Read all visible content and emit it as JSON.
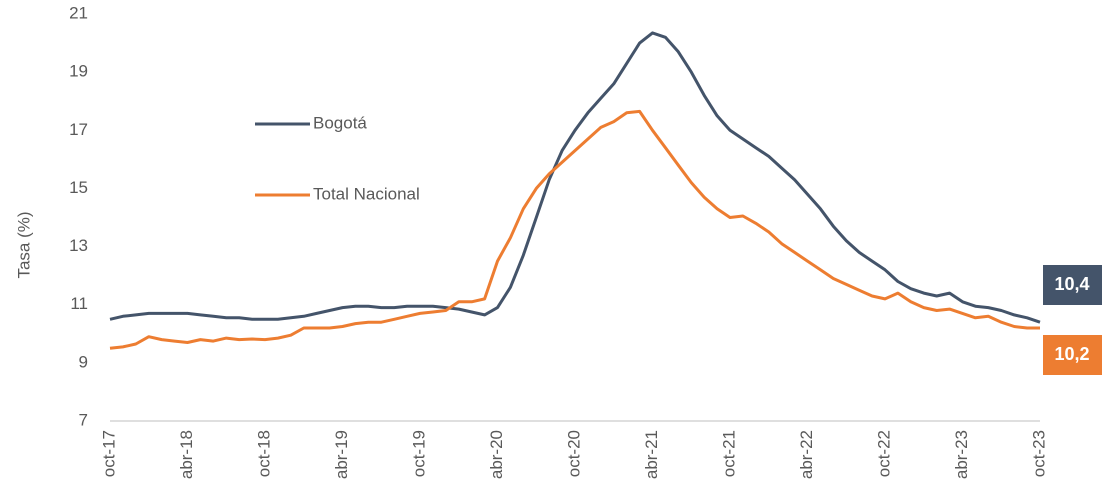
{
  "chart_data": {
    "type": "line",
    "y_label": "Tasa (%)",
    "categories": [
      "oct-17",
      null,
      null,
      null,
      null,
      null,
      "abr-18",
      null,
      null,
      null,
      null,
      null,
      "oct-18",
      null,
      null,
      null,
      null,
      null,
      "abr-19",
      null,
      null,
      null,
      null,
      null,
      "oct-19",
      null,
      null,
      null,
      null,
      null,
      "abr-20",
      null,
      null,
      null,
      null,
      null,
      "oct-20",
      null,
      null,
      null,
      null,
      null,
      "abr-21",
      null,
      null,
      null,
      null,
      null,
      "oct-21",
      null,
      null,
      null,
      null,
      null,
      "abr-22",
      null,
      null,
      null,
      null,
      null,
      "oct-22",
      null,
      null,
      null,
      null,
      null,
      "abr-23",
      null,
      null,
      null,
      null,
      null,
      "oct-23"
    ],
    "series": [
      {
        "name": "Bogotá",
        "color": "#44546a",
        "end_label": "10,4",
        "values": [
          10.5,
          10.6,
          10.65,
          10.7,
          10.7,
          10.7,
          10.7,
          10.65,
          10.6,
          10.55,
          10.55,
          10.5,
          10.5,
          10.5,
          10.55,
          10.6,
          10.7,
          10.8,
          10.9,
          10.95,
          10.95,
          10.9,
          10.9,
          10.95,
          10.95,
          10.95,
          10.9,
          10.85,
          10.75,
          10.65,
          10.9,
          11.6,
          12.7,
          14.0,
          15.3,
          16.3,
          17.0,
          17.6,
          18.1,
          18.6,
          19.3,
          20.0,
          20.35,
          20.2,
          19.7,
          19.0,
          18.2,
          17.5,
          17.0,
          16.7,
          16.4,
          16.1,
          15.7,
          15.3,
          14.8,
          14.3,
          13.7,
          13.2,
          12.8,
          12.5,
          12.2,
          11.8,
          11.55,
          11.4,
          11.3,
          11.4,
          11.1,
          10.95,
          10.9,
          10.8,
          10.65,
          10.55,
          10.4
        ]
      },
      {
        "name": "Total Nacional",
        "color": "#ed7d31",
        "end_label": "10,2",
        "values": [
          9.5,
          9.55,
          9.65,
          9.9,
          9.8,
          9.75,
          9.7,
          9.8,
          9.75,
          9.85,
          9.8,
          9.82,
          9.8,
          9.85,
          9.95,
          10.2,
          10.2,
          10.2,
          10.25,
          10.35,
          10.4,
          10.4,
          10.5,
          10.6,
          10.7,
          10.75,
          10.8,
          11.1,
          11.1,
          11.2,
          12.5,
          13.3,
          14.3,
          15.0,
          15.5,
          15.9,
          16.3,
          16.7,
          17.1,
          17.3,
          17.6,
          17.65,
          17.0,
          16.4,
          15.8,
          15.2,
          14.7,
          14.3,
          14.0,
          14.05,
          13.8,
          13.5,
          13.1,
          12.8,
          12.5,
          12.2,
          11.9,
          11.7,
          11.5,
          11.3,
          11.2,
          11.4,
          11.1,
          10.9,
          10.8,
          10.85,
          10.7,
          10.55,
          10.6,
          10.4,
          10.25,
          10.2,
          10.2
        ]
      }
    ],
    "ylim": [
      7,
      21
    ],
    "yticks": [
      7,
      9,
      11,
      13,
      15,
      17,
      19,
      21
    ],
    "grid": false
  }
}
